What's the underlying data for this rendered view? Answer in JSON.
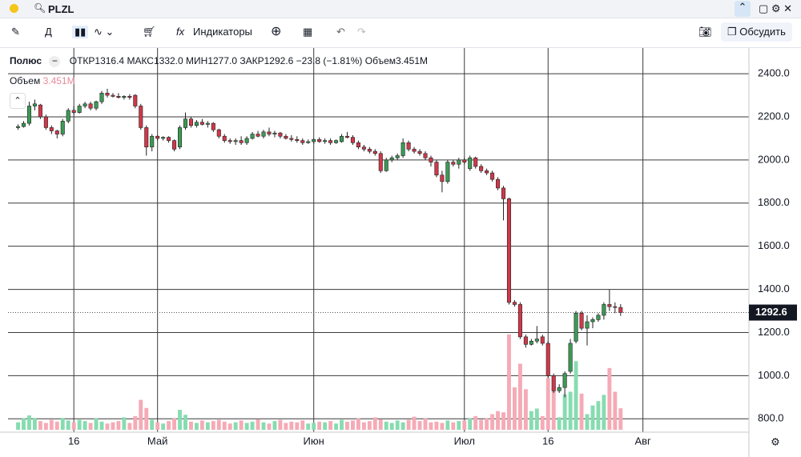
{
  "toolbar": {
    "symbol": "PLZL",
    "interval": "Д",
    "indicators": "Индикаторы",
    "discuss": "Обсудить"
  },
  "chart_data": {
    "type": "candlestick",
    "title": "Полюс",
    "legend": {
      "open": "ОТКР",
      "high": "МАКС",
      "low": "МИН",
      "close": "ЗАКР",
      "volume": "Объем"
    },
    "last_labels": {
      "open": "1316.4",
      "high": "1332.0",
      "low": "1277.0",
      "close": "1292.6",
      "change": "−23.8",
      "change_pct": "(−1.81%)",
      "volume": "3.451M"
    },
    "up_color": "#3c9a55",
    "down_color": "#d0384a",
    "up_volume_color": "#86dcb0",
    "down_volume_color": "#f5aab6",
    "grid": true,
    "xlim": [
      -1.8,
      131
    ],
    "xticks": [
      {
        "value": 10,
        "label": "16"
      },
      {
        "value": 25,
        "label": "Май"
      },
      {
        "value": 53,
        "label": "Июн"
      },
      {
        "value": 80,
        "label": "Июл"
      },
      {
        "value": 95,
        "label": "16"
      },
      {
        "value": 112,
        "label": "Авг"
      }
    ],
    "ylim": [
      738,
      2519
    ],
    "yticks": [
      {
        "value": 800,
        "label": "800.0"
      },
      {
        "value": 1000,
        "label": "1000.0"
      },
      {
        "value": 1200,
        "label": "1200.0"
      },
      {
        "value": 1400,
        "label": "1400.0"
      },
      {
        "value": 1600,
        "label": "1600.0"
      },
      {
        "value": 1800,
        "label": "1800.0"
      },
      {
        "value": 2000,
        "label": "2000.0"
      },
      {
        "value": 2200,
        "label": "2200.0"
      },
      {
        "value": 2400,
        "label": "2400.0"
      }
    ],
    "vlim": [
      0,
      24000000
    ],
    "ohlc": [
      [
        2150,
        2165,
        2140,
        2155
      ],
      [
        2155,
        2180,
        2150,
        2170
      ],
      [
        2170,
        2270,
        2160,
        2250
      ],
      [
        2250,
        2280,
        2230,
        2260
      ],
      [
        2255,
        2260,
        2190,
        2200
      ],
      [
        2200,
        2210,
        2140,
        2150
      ],
      [
        2150,
        2160,
        2120,
        2135
      ],
      [
        2135,
        2140,
        2100,
        2120
      ],
      [
        2120,
        2190,
        2110,
        2180
      ],
      [
        2180,
        2240,
        2170,
        2230
      ],
      [
        2230,
        2250,
        2210,
        2220
      ],
      [
        2220,
        2260,
        2215,
        2250
      ],
      [
        2250,
        2270,
        2240,
        2260
      ],
      [
        2260,
        2270,
        2230,
        2240
      ],
      [
        2240,
        2275,
        2230,
        2270
      ],
      [
        2270,
        2320,
        2260,
        2310
      ],
      [
        2310,
        2330,
        2290,
        2300
      ],
      [
        2300,
        2310,
        2290,
        2295
      ],
      [
        2295,
        2310,
        2285,
        2290
      ],
      [
        2290,
        2300,
        2280,
        2295
      ],
      [
        2295,
        2305,
        2280,
        2290
      ],
      [
        2300,
        2305,
        2240,
        2250
      ],
      [
        2250,
        2260,
        2140,
        2150
      ],
      [
        2150,
        2160,
        2020,
        2060
      ],
      [
        2060,
        2120,
        2040,
        2110
      ],
      [
        2110,
        2115,
        2090,
        2100
      ],
      [
        2100,
        2110,
        2090,
        2105
      ],
      [
        2105,
        2110,
        2080,
        2090
      ],
      [
        2090,
        2095,
        2040,
        2050
      ],
      [
        2060,
        2160,
        2050,
        2150
      ],
      [
        2150,
        2220,
        2140,
        2190
      ],
      [
        2190,
        2200,
        2150,
        2160
      ],
      [
        2160,
        2185,
        2150,
        2175
      ],
      [
        2175,
        2190,
        2160,
        2165
      ],
      [
        2165,
        2180,
        2150,
        2170
      ],
      [
        2170,
        2175,
        2130,
        2140
      ],
      [
        2140,
        2145,
        2100,
        2110
      ],
      [
        2110,
        2120,
        2080,
        2090
      ],
      [
        2090,
        2100,
        2075,
        2085
      ],
      [
        2085,
        2100,
        2070,
        2090
      ],
      [
        2090,
        2110,
        2070,
        2080
      ],
      [
        2080,
        2110,
        2070,
        2100
      ],
      [
        2100,
        2130,
        2095,
        2120
      ],
      [
        2120,
        2135,
        2105,
        2110
      ],
      [
        2110,
        2140,
        2100,
        2130
      ],
      [
        2130,
        2150,
        2110,
        2120
      ],
      [
        2120,
        2135,
        2105,
        2125
      ],
      [
        2125,
        2130,
        2100,
        2110
      ],
      [
        2110,
        2120,
        2095,
        2100
      ],
      [
        2100,
        2115,
        2085,
        2095
      ],
      [
        2095,
        2110,
        2080,
        2090
      ],
      [
        2090,
        2100,
        2070,
        2080
      ],
      [
        2080,
        2095,
        2075,
        2085
      ],
      [
        2085,
        2100,
        2075,
        2095
      ],
      [
        2095,
        2105,
        2080,
        2085
      ],
      [
        2085,
        2100,
        2075,
        2090
      ],
      [
        2090,
        2100,
        2070,
        2080
      ],
      [
        2080,
        2095,
        2075,
        2090
      ],
      [
        2085,
        2120,
        2080,
        2110
      ],
      [
        2110,
        2130,
        2100,
        2105
      ],
      [
        2105,
        2115,
        2070,
        2080
      ],
      [
        2080,
        2090,
        2050,
        2060
      ],
      [
        2060,
        2070,
        2040,
        2050
      ],
      [
        2050,
        2060,
        2030,
        2040
      ],
      [
        2040,
        2050,
        2020,
        2030
      ],
      [
        2030,
        2040,
        1940,
        1950
      ],
      [
        1950,
        2010,
        1945,
        2000
      ],
      [
        2000,
        2020,
        1990,
        2010
      ],
      [
        2010,
        2030,
        2000,
        2020
      ],
      [
        2020,
        2100,
        2010,
        2080
      ],
      [
        2080,
        2090,
        2040,
        2050
      ],
      [
        2050,
        2060,
        2030,
        2040
      ],
      [
        2040,
        2050,
        2020,
        2030
      ],
      [
        2030,
        2040,
        2000,
        2010
      ],
      [
        2010,
        2020,
        1970,
        1990
      ],
      [
        1990,
        2000,
        1920,
        1930
      ],
      [
        1930,
        1950,
        1850,
        1900
      ],
      [
        1900,
        2000,
        1890,
        1990
      ],
      [
        1990,
        2000,
        1970,
        1980
      ],
      [
        1980,
        2010,
        1960,
        2000
      ],
      [
        2000,
        2010,
        1980,
        1990
      ],
      [
        1960,
        2020,
        1950,
        2010
      ],
      [
        2010,
        2015,
        1960,
        1970
      ],
      [
        1970,
        1980,
        1940,
        1950
      ],
      [
        1950,
        1960,
        1930,
        1940
      ],
      [
        1940,
        1950,
        1900,
        1910
      ],
      [
        1910,
        1920,
        1860,
        1870
      ],
      [
        1870,
        1880,
        1720,
        1820
      ],
      [
        1820,
        1825,
        1330,
        1340
      ],
      [
        1340,
        1350,
        1320,
        1330
      ],
      [
        1330,
        1340,
        1170,
        1180
      ],
      [
        1180,
        1190,
        1130,
        1145
      ],
      [
        1145,
        1170,
        1140,
        1160
      ],
      [
        1160,
        1230,
        1150,
        1170
      ],
      [
        1180,
        1190,
        1140,
        1150
      ],
      [
        1150,
        1160,
        990,
        1000
      ],
      [
        1000,
        1010,
        920,
        930
      ],
      [
        930,
        960,
        920,
        945
      ],
      [
        945,
        1020,
        900,
        1010
      ],
      [
        1020,
        1170,
        1010,
        1150
      ],
      [
        1160,
        1300,
        1150,
        1290
      ],
      [
        1290,
        1300,
        1210,
        1220
      ],
      [
        1220,
        1280,
        1140,
        1250
      ],
      [
        1250,
        1270,
        1220,
        1260
      ],
      [
        1260,
        1290,
        1250,
        1280
      ],
      [
        1280,
        1340,
        1260,
        1330
      ],
      [
        1330,
        1400,
        1300,
        1320
      ],
      [
        1320,
        1340,
        1290,
        1316.4
      ],
      [
        1316.4,
        1332,
        1277,
        1292.6
      ]
    ],
    "volume": [
      1200000,
      1800000,
      2300000,
      1900000,
      1400000,
      1100000,
      1600000,
      1300000,
      1900000,
      1500000,
      1200000,
      1600000,
      1400000,
      1100000,
      1800000,
      1300000,
      1000000,
      1200000,
      1400000,
      2000000,
      1100000,
      2200000,
      4800000,
      3500000,
      1600000,
      1200000,
      1000000,
      1400000,
      1800000,
      3200000,
      2400000,
      1300000,
      1100000,
      1500000,
      1200000,
      1400000,
      1600000,
      1300000,
      1000000,
      1200000,
      1500000,
      1100000,
      1300000,
      1700000,
      1200000,
      1000000,
      1400000,
      1600000,
      1100000,
      1300000,
      1200000,
      1500000,
      1000000,
      1100000,
      1300000,
      1200000,
      1400000,
      1000000,
      1600000,
      1300000,
      1500000,
      1800000,
      1200000,
      1400000,
      2000000,
      1700000,
      1300000,
      1100000,
      1500000,
      1200000,
      1600000,
      2100000,
      1400000,
      1800000,
      1200000,
      1300000,
      1100000,
      1500000,
      1200000,
      1400000,
      1500000,
      1800000,
      2200000,
      1600000,
      1900000,
      2500000,
      3000000,
      2800000,
      15300000,
      6800000,
      10600000,
      6500000,
      3000000,
      3400000,
      2200000,
      8300000,
      6900000,
      2000000,
      5700000,
      6100000,
      11000000,
      5800000,
      2500000,
      3900000,
      4600000,
      5600000,
      9900000,
      6100000,
      3451000
    ],
    "volume_labels": {
      "108": "3.451M"
    }
  }
}
